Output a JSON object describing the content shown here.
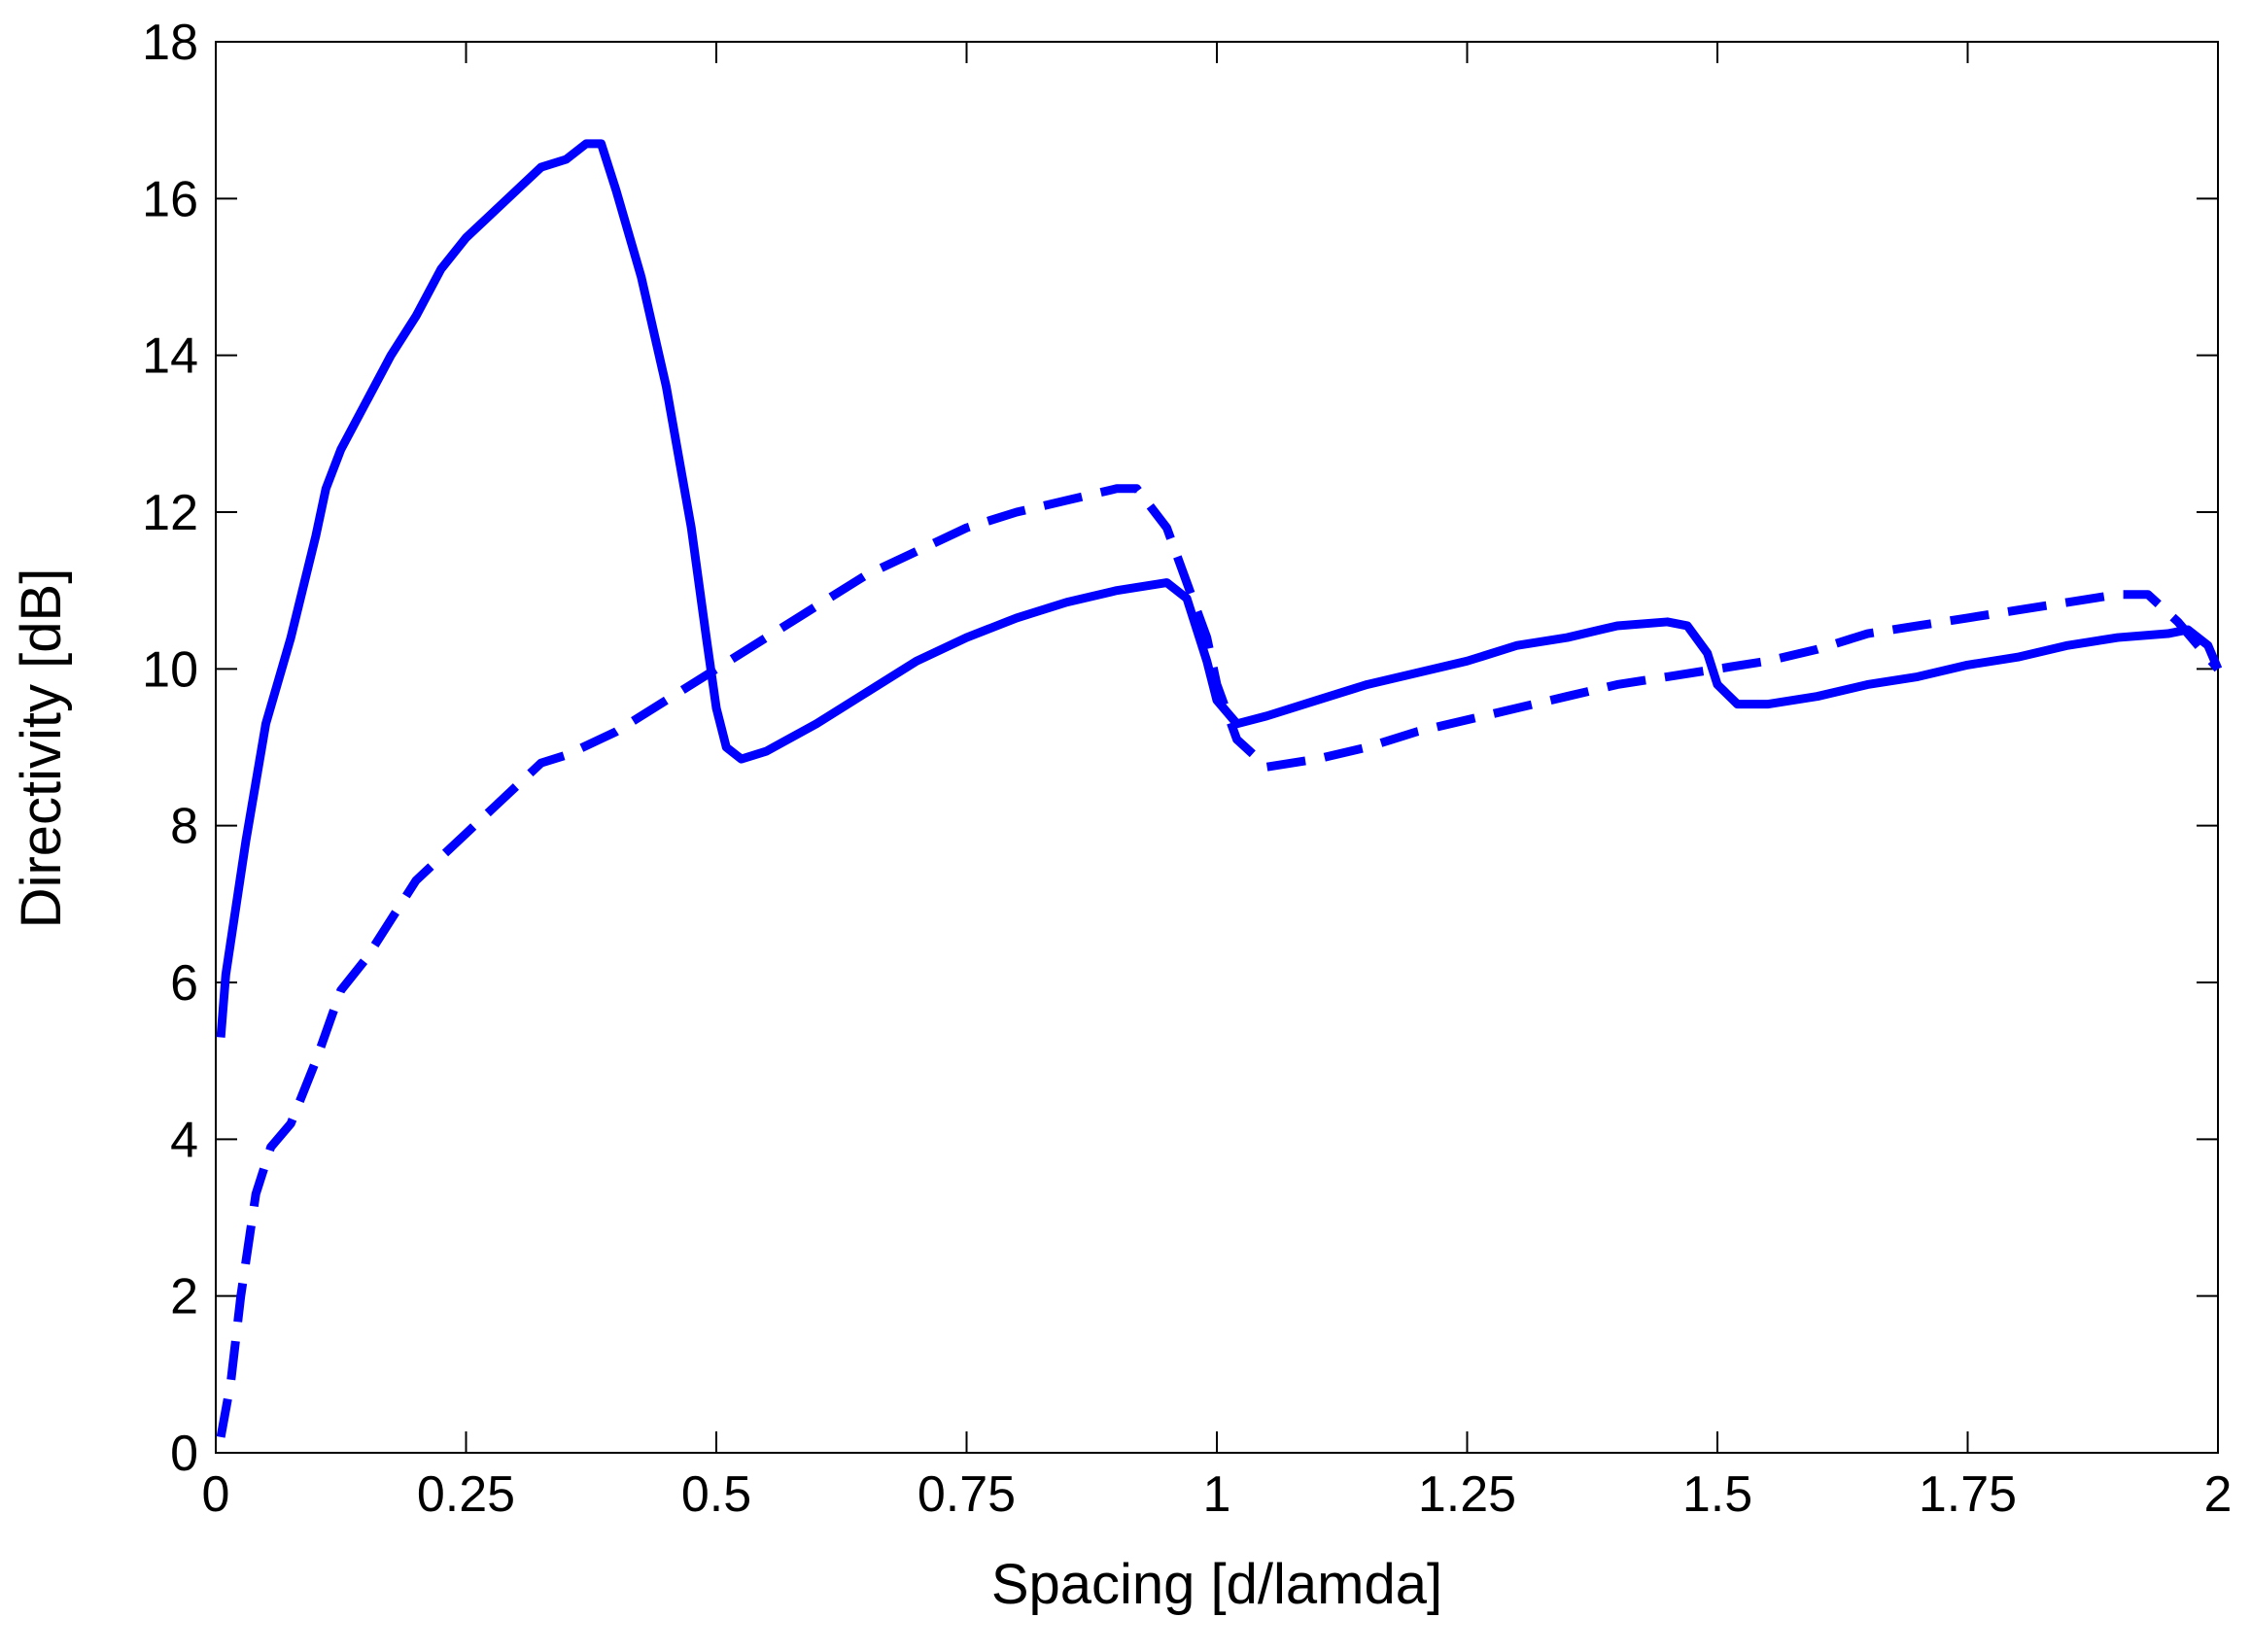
{
  "chart_data": {
    "type": "line",
    "x_label": "Spacing [d/lamda]",
    "y_label": "Directivity [dB]",
    "xlim": [
      0,
      2
    ],
    "ylim": [
      0,
      18
    ],
    "xticks": [
      0,
      0.25,
      0.5,
      0.75,
      1,
      1.25,
      1.5,
      1.75,
      2
    ],
    "yticks": [
      0,
      2,
      4,
      6,
      8,
      10,
      12,
      14,
      16,
      18
    ],
    "grid": false,
    "series": [
      {
        "color": "#0000ff",
        "style": "solid",
        "x": [
          0.005,
          0.01,
          0.03,
          0.05,
          0.075,
          0.1,
          0.11,
          0.125,
          0.15,
          0.175,
          0.2,
          0.225,
          0.25,
          0.275,
          0.3,
          0.325,
          0.35,
          0.37,
          0.385,
          0.4,
          0.425,
          0.45,
          0.475,
          0.49,
          0.5,
          0.51,
          0.525,
          0.55,
          0.6,
          0.65,
          0.7,
          0.75,
          0.8,
          0.85,
          0.9,
          0.95,
          0.97,
          0.99,
          1.0,
          1.02,
          1.05,
          1.1,
          1.15,
          1.2,
          1.25,
          1.3,
          1.35,
          1.4,
          1.45,
          1.47,
          1.49,
          1.5,
          1.52,
          1.55,
          1.6,
          1.65,
          1.7,
          1.75,
          1.8,
          1.85,
          1.9,
          1.95,
          1.97,
          1.99,
          2.0
        ],
        "values": [
          5.3,
          6.1,
          7.8,
          9.3,
          10.4,
          11.7,
          12.3,
          12.8,
          13.4,
          14.0,
          14.5,
          15.1,
          15.5,
          15.8,
          16.1,
          16.4,
          16.5,
          16.7,
          16.7,
          16.1,
          15.0,
          13.6,
          11.8,
          10.4,
          9.5,
          9.0,
          8.85,
          8.95,
          9.3,
          9.7,
          10.1,
          10.4,
          10.65,
          10.85,
          11.0,
          11.1,
          10.9,
          10.1,
          9.6,
          9.3,
          9.4,
          9.6,
          9.8,
          9.95,
          10.1,
          10.3,
          10.4,
          10.55,
          10.6,
          10.55,
          10.2,
          9.8,
          9.55,
          9.55,
          9.65,
          9.8,
          9.9,
          10.05,
          10.15,
          10.3,
          10.4,
          10.45,
          10.5,
          10.3,
          10.0
        ]
      },
      {
        "color": "#0000ff",
        "style": "dashed",
        "x": [
          0.005,
          0.015,
          0.025,
          0.04,
          0.055,
          0.075,
          0.1,
          0.125,
          0.15,
          0.175,
          0.2,
          0.225,
          0.25,
          0.275,
          0.3,
          0.325,
          0.35,
          0.4,
          0.45,
          0.5,
          0.55,
          0.6,
          0.65,
          0.7,
          0.75,
          0.8,
          0.85,
          0.9,
          0.92,
          0.95,
          0.97,
          0.99,
          1.0,
          1.02,
          1.05,
          1.1,
          1.15,
          1.2,
          1.25,
          1.3,
          1.35,
          1.4,
          1.45,
          1.5,
          1.55,
          1.6,
          1.65,
          1.7,
          1.75,
          1.8,
          1.85,
          1.9,
          1.93,
          1.96,
          1.99,
          2.0
        ],
        "values": [
          0.2,
          0.9,
          2.0,
          3.3,
          3.9,
          4.2,
          5.0,
          5.9,
          6.3,
          6.8,
          7.3,
          7.6,
          7.9,
          8.2,
          8.5,
          8.8,
          8.9,
          9.2,
          9.6,
          10.0,
          10.4,
          10.8,
          11.2,
          11.5,
          11.8,
          12.0,
          12.15,
          12.3,
          12.3,
          11.8,
          11.1,
          10.4,
          9.8,
          9.1,
          8.75,
          8.85,
          9.0,
          9.2,
          9.35,
          9.5,
          9.65,
          9.8,
          9.9,
          10.0,
          10.1,
          10.25,
          10.45,
          10.55,
          10.65,
          10.75,
          10.85,
          10.95,
          10.95,
          10.6,
          10.15,
          10.0
        ]
      }
    ]
  }
}
